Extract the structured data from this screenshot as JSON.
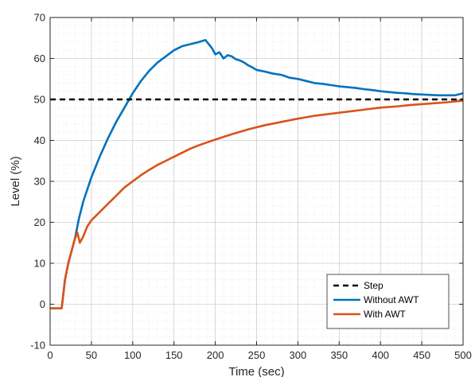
{
  "chart_data": {
    "type": "line",
    "xlabel": "Time (sec)",
    "ylabel": "Level (%)",
    "xlim": [
      0,
      500
    ],
    "ylim": [
      -10,
      70
    ],
    "xticks": [
      0,
      50,
      100,
      150,
      200,
      250,
      300,
      350,
      400,
      450,
      500
    ],
    "yticks": [
      -10,
      0,
      10,
      20,
      30,
      40,
      50,
      60,
      70
    ],
    "grid": true,
    "minor_grid": true,
    "legend_position": "bottom-right",
    "series": [
      {
        "name": "Step",
        "color": "#000000",
        "style": "dashed",
        "x": [
          0,
          500
        ],
        "y": [
          50,
          50
        ]
      },
      {
        "name": "Without AWT",
        "color": "#0072bd",
        "style": "solid",
        "x": [
          0,
          14,
          18,
          22,
          26,
          30,
          35,
          40,
          50,
          60,
          70,
          80,
          90,
          100,
          110,
          120,
          130,
          140,
          150,
          160,
          170,
          180,
          188,
          192,
          196,
          200,
          205,
          210,
          215,
          220,
          225,
          230,
          235,
          240,
          245,
          250,
          260,
          270,
          280,
          290,
          300,
          310,
          320,
          330,
          340,
          350,
          360,
          370,
          380,
          390,
          400,
          410,
          420,
          430,
          440,
          450,
          460,
          470,
          480,
          490,
          500
        ],
        "y": [
          -1,
          -1,
          6,
          10,
          13,
          16,
          21,
          25,
          31,
          36,
          40.5,
          44.5,
          48,
          51.5,
          54.5,
          57,
          59,
          60.5,
          62,
          63,
          63.5,
          64,
          64.5,
          63.5,
          62.5,
          61,
          61.5,
          60,
          60.8,
          60.5,
          59.8,
          59.5,
          59,
          58.3,
          57.8,
          57.2,
          56.8,
          56.3,
          56,
          55.3,
          55,
          54.5,
          54,
          53.8,
          53.5,
          53.2,
          53,
          52.8,
          52.5,
          52.3,
          52,
          51.8,
          51.6,
          51.5,
          51.3,
          51.2,
          51.1,
          51,
          51,
          51,
          51.5
        ]
      },
      {
        "name": "With AWT",
        "color": "#d95319",
        "style": "solid",
        "x": [
          0,
          14,
          18,
          22,
          26,
          30,
          33,
          36,
          40,
          45,
          50,
          55,
          60,
          70,
          80,
          90,
          100,
          110,
          120,
          130,
          140,
          150,
          160,
          170,
          180,
          190,
          200,
          220,
          240,
          260,
          280,
          300,
          320,
          340,
          360,
          380,
          400,
          420,
          440,
          460,
          480,
          500
        ],
        "y": [
          -1,
          -1,
          6,
          10,
          13,
          16,
          17.5,
          15,
          16.5,
          19,
          20.5,
          21.5,
          22.5,
          24.5,
          26.5,
          28.5,
          30,
          31.5,
          32.8,
          34,
          35,
          36,
          37,
          38,
          38.8,
          39.5,
          40.2,
          41.5,
          42.7,
          43.7,
          44.5,
          45.3,
          46,
          46.5,
          47,
          47.5,
          48,
          48.3,
          48.7,
          49,
          49.3,
          49.7
        ]
      }
    ]
  }
}
